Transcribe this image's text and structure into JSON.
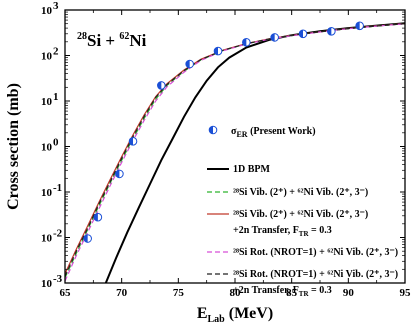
{
  "chart_data": {
    "type": "line",
    "title": "28Si + 62Ni",
    "title_parts": {
      "a1": "28",
      "e1": "Si + ",
      "a2": "62",
      "e2": "Ni"
    },
    "xlabel": "E",
    "xlabel_sub": "Lab",
    "xlabel_unit": " (MeV)",
    "ylabel": "Cross section (mb)",
    "xlim": [
      65,
      95
    ],
    "ylim": [
      0.001,
      1000
    ],
    "yscale": "log",
    "x_ticks": [
      65,
      70,
      75,
      80,
      85,
      90,
      95
    ],
    "y_ticks": [
      {
        "value": 0.001,
        "base": "10",
        "exp": "-3"
      },
      {
        "value": 0.01,
        "base": "10",
        "exp": "-2"
      },
      {
        "value": 0.1,
        "base": "10",
        "exp": "-1"
      },
      {
        "value": 1,
        "base": "10",
        "exp": "0"
      },
      {
        "value": 10,
        "base": "10",
        "exp": "1"
      },
      {
        "value": 100,
        "base": "10",
        "exp": "2"
      },
      {
        "value": 1000,
        "base": "10",
        "exp": "3"
      }
    ],
    "experimental": {
      "name": "σER (Present Work)",
      "label_parts": {
        "sym": "σ",
        "sub": "ER",
        "rest": " (Present Work)"
      },
      "color": "#1a4fd6",
      "x": [
        67.0,
        67.9,
        69.8,
        71.0,
        73.5,
        76.0,
        78.5,
        81.0,
        83.5,
        86.0,
        88.5,
        91.0
      ],
      "y": [
        0.0095,
        0.028,
        0.25,
        1.3,
        22,
        65,
        125,
        195,
        250,
        300,
        340,
        450
      ]
    },
    "series": [
      {
        "name": "1D BPM",
        "label_lines": [
          "1D BPM"
        ],
        "color": "#000000",
        "dash": "",
        "x": [
          68.6,
          69.5,
          70.5,
          71.5,
          72.5,
          73.5,
          74.5,
          75.5,
          76.5,
          77.5,
          78.5,
          79.5,
          81.0,
          83.0,
          85.0,
          87.5,
          90.0,
          92.5,
          95.0
        ],
        "y": [
          0.001,
          0.0035,
          0.013,
          0.045,
          0.15,
          0.5,
          1.5,
          4.5,
          12,
          28,
          55,
          90,
          150,
          220,
          280,
          340,
          400,
          455,
          510
        ]
      },
      {
        "name": "28Si Vib. (2+) + 62Ni Vib. (2+, 3-)",
        "label_lines": [
          "²⁸Si Vib. (2⁺) + ⁶²Ni Vib. (2⁺, 3⁻)"
        ],
        "color": "#2fb52f",
        "dash": "5,3",
        "x": [
          65.0,
          66.0,
          67.0,
          68.0,
          69.0,
          70.0,
          71.0,
          72.0,
          73.0,
          74.0,
          75.5,
          77.0,
          79.0,
          81.0,
          83.0,
          85.0,
          87.5,
          90.0,
          92.5,
          95.0
        ],
        "y": [
          0.0013,
          0.0045,
          0.015,
          0.05,
          0.16,
          0.5,
          1.5,
          4.2,
          11,
          22,
          45,
          80,
          130,
          180,
          230,
          275,
          330,
          390,
          445,
          500
        ]
      },
      {
        "name": "28Si Vib. (2+) + 62Ni Vib. (2+, 3-) +2n Transfer, FTR = 0.3",
        "label_lines": [
          "²⁸Si Vib. (2⁺) + ⁶²Ni Vib. (2⁺, 3⁻)",
          "+2n Transfer, F",
          "TR",
          " = 0.3"
        ],
        "color": "#c0392b",
        "dash": "",
        "x": [
          65.0,
          66.0,
          67.0,
          68.0,
          69.0,
          70.0,
          71.0,
          72.0,
          73.0,
          74.0,
          75.5,
          77.0,
          79.0,
          81.0,
          83.0,
          85.0,
          87.5,
          90.0,
          92.5,
          95.0
        ],
        "y": [
          0.0016,
          0.0055,
          0.018,
          0.06,
          0.19,
          0.6,
          1.8,
          5.0,
          12.5,
          24,
          48,
          83,
          133,
          183,
          232,
          277,
          332,
          392,
          447,
          502
        ]
      },
      {
        "name": "28Si Rot. (NROT=1) + 62Ni Vib. (2+, 3-)",
        "label_lines": [
          "²⁸Si Rot. (NROT=1) + ⁶²Ni Vib. (2⁺, 3⁻)"
        ],
        "color": "#d64fd6",
        "dash": "5,3",
        "x": [
          65.0,
          66.0,
          67.0,
          68.0,
          69.0,
          70.0,
          71.0,
          72.0,
          73.0,
          74.0,
          75.5,
          77.0,
          79.0,
          81.0,
          83.0,
          85.0,
          87.5,
          90.0,
          92.5,
          95.0
        ],
        "y": [
          0.0011,
          0.004,
          0.013,
          0.043,
          0.14,
          0.45,
          1.35,
          3.8,
          10,
          20.5,
          43,
          78,
          128,
          178,
          228,
          273,
          328,
          388,
          443,
          498
        ]
      },
      {
        "name": "28Si Rot. (NROT=1) + 62Ni Vib. (2+, 3-) +2n Transfer, FTR = 0.3",
        "label_lines": [
          "²⁸Si Rot. (NROT=1) + ⁶²Ni Vib. (2⁺, 3⁻)",
          "+2n Transfer, F",
          "TR",
          " = 0.3"
        ],
        "color": "#222222",
        "dash": "5,3",
        "x": [
          65.0,
          66.0,
          67.0,
          68.0,
          69.0,
          70.0,
          71.0,
          72.0,
          73.0,
          74.0,
          75.5,
          77.0,
          79.0,
          81.0,
          83.0,
          85.0,
          87.5,
          90.0,
          92.5,
          95.0
        ],
        "y": [
          0.0014,
          0.005,
          0.016,
          0.055,
          0.17,
          0.55,
          1.65,
          4.6,
          12,
          23,
          46.5,
          81.5,
          131.5,
          181.5,
          231,
          276,
          331,
          391,
          446,
          501
        ]
      }
    ],
    "legend_position": "bottom-right",
    "grid": false
  }
}
